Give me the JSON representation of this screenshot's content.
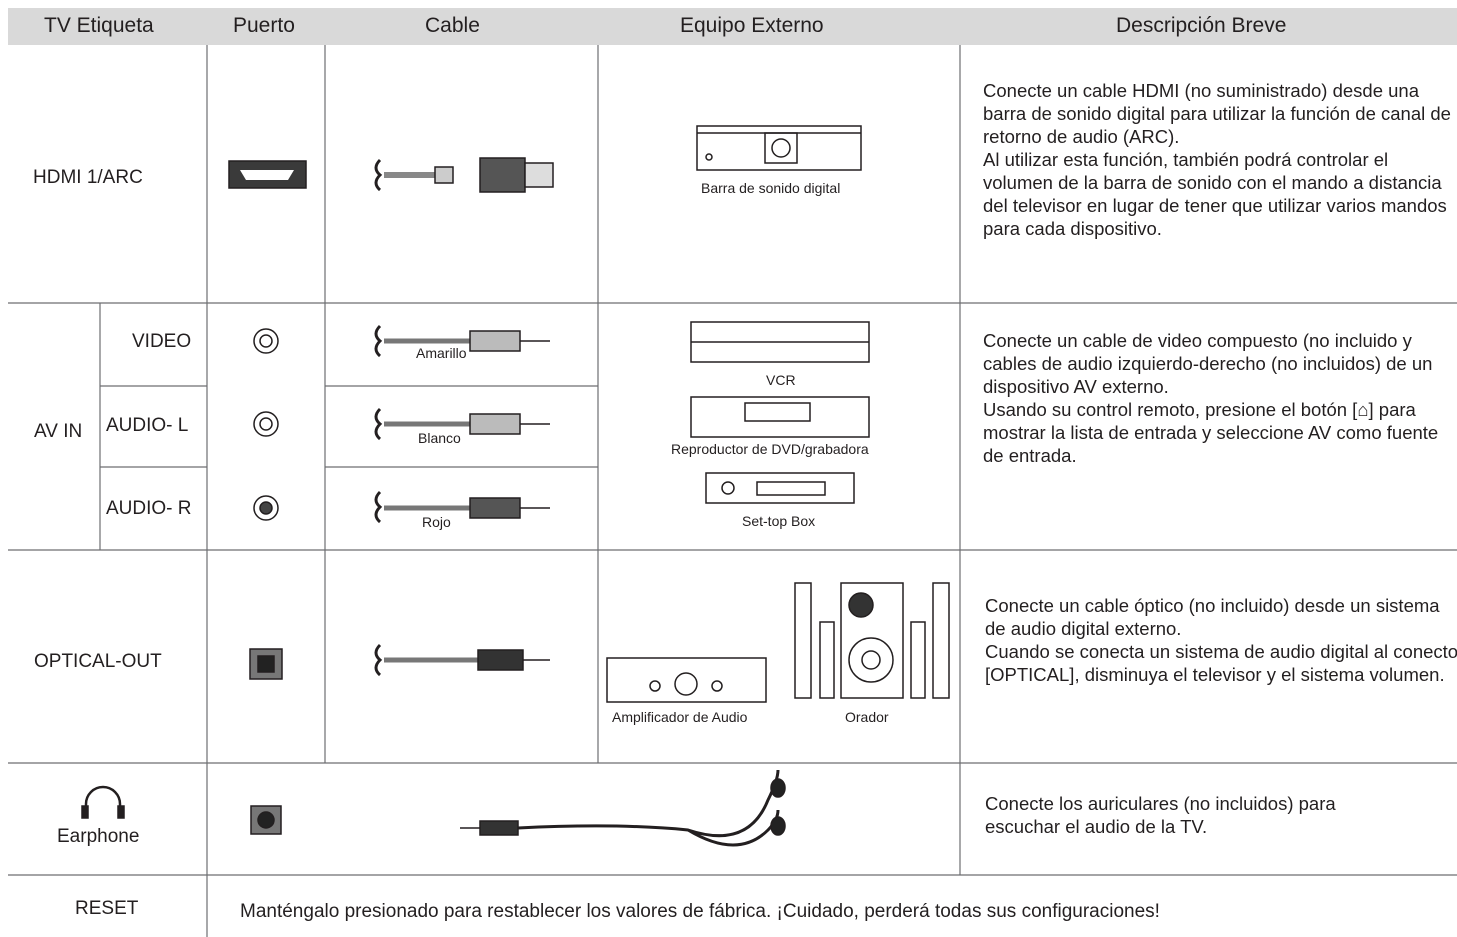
{
  "header": [
    "TV Etiqueta",
    "Puerto",
    "Cable",
    "Equipo Externo",
    "Descripción Breve"
  ],
  "hdmi": {
    "label": "HDMI 1/ARC",
    "equipment": "Barra de sonido digital",
    "description": [
      "Conecte un cable HDMI (no suministrado) desde una barra de sonido digital para utilizar la función de canal de retorno de audio (ARC).",
      "Al utilizar esta función, también podrá controlar el volumen de la barra de sonido con el mando a distancia del televisor en lugar de tener que utilizar varios mandos para cada dispositivo."
    ]
  },
  "av": {
    "label": "AV IN",
    "ports": [
      "VIDEO",
      "AUDIO- L",
      "AUDIO- R"
    ],
    "cables": [
      "Amarillo",
      "Blanco",
      "Rojo"
    ],
    "equipment": [
      "VCR",
      "Reproductor de DVD/grabadora",
      "Set-top Box"
    ],
    "description": [
      "Conecte un cable de video compuesto (no incluido y cables de audio izquierdo-derecho (no incluidos) de un dispositivo AV externo.",
      "Usando su control remoto, presione el botón [⌂] para mostrar la lista de entrada y seleccione AV como fuente de entrada."
    ]
  },
  "optical": {
    "label": "OPTICAL-OUT",
    "equipment": [
      "Amplificador de Audio",
      "Orador"
    ],
    "description": [
      "Conecte un cable óptico (no incluido) desde un sistema de audio digital externo.",
      "Cuando se conecta un sistema de audio digital al conector [OPTICAL], disminuya el televisor y el sistema volumen."
    ]
  },
  "earphone": {
    "label": "Earphone",
    "description": [
      "Conecte los auriculares (no incluidos) para escuchar el audio de la TV."
    ]
  },
  "reset": {
    "label": "RESET",
    "description": "Manténgalo presionado para restablecer los valores de fábrica. ¡Cuidado, perderá todas sus configuraciones!"
  }
}
